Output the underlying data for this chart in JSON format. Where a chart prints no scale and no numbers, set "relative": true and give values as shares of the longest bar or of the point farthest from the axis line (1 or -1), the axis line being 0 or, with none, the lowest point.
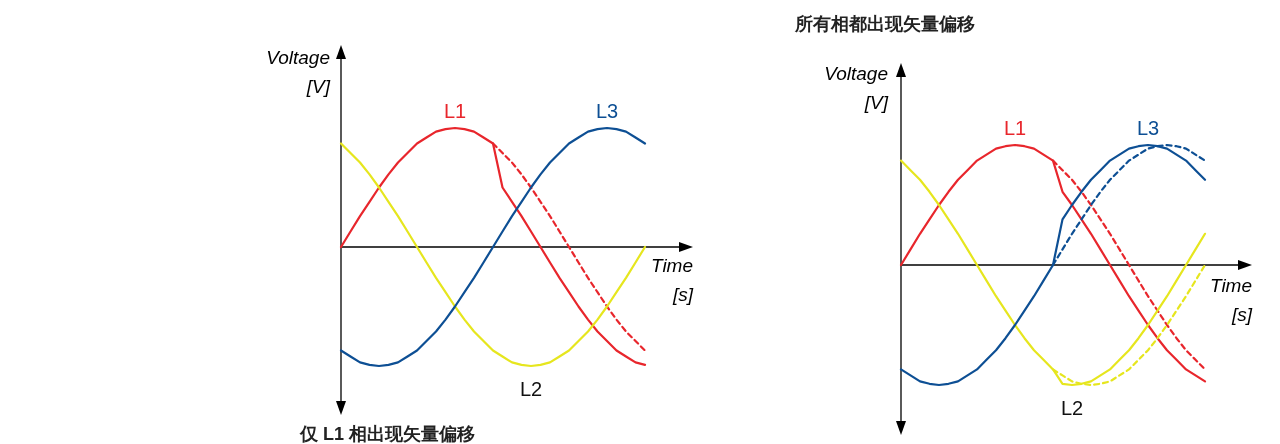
{
  "chart_data": [
    {
      "type": "line",
      "relative": true,
      "title": "仅 L1 相出现矢量偏移",
      "xlabel": "Time [s]",
      "ylabel": "Voltage [V]",
      "categories": [
        null,
        null,
        null,
        null,
        null,
        null,
        null,
        null,
        null,
        null,
        null,
        null,
        null,
        null,
        null,
        null,
        null,
        null,
        null,
        null,
        null,
        null,
        null,
        null,
        null,
        null,
        null,
        null,
        null,
        null,
        null,
        null,
        null
      ],
      "series": [
        {
          "name": "L1",
          "color": "#e8262c",
          "values": [
            0,
            0.13,
            0.26,
            0.38,
            0.5,
            0.61,
            0.71,
            0.79,
            0.87,
            0.92,
            0.97,
            0.99,
            1,
            0.99,
            0.97,
            0.92,
            0.87,
            0.5,
            0.38,
            0.26,
            0.13,
            0,
            -0.13,
            -0.26,
            -0.38,
            -0.5,
            -0.61,
            -0.71,
            -0.79,
            -0.87,
            -0.92,
            -0.97,
            -0.99
          ]
        },
        {
          "color": "#e8262c",
          "line_style": "dashed",
          "values": [
            null,
            null,
            null,
            null,
            null,
            null,
            null,
            null,
            null,
            null,
            null,
            null,
            null,
            null,
            null,
            null,
            0.87,
            0.79,
            0.71,
            0.61,
            0.5,
            0.38,
            0.26,
            0.13,
            0,
            -0.13,
            -0.26,
            -0.38,
            -0.5,
            -0.61,
            -0.71,
            -0.79,
            -0.87
          ]
        },
        {
          "name": "L2",
          "color": "#e6e61e",
          "values": [
            0.87,
            0.79,
            0.71,
            0.61,
            0.5,
            0.38,
            0.26,
            0.13,
            0,
            -0.13,
            -0.26,
            -0.38,
            -0.5,
            -0.61,
            -0.71,
            -0.79,
            -0.87,
            -0.92,
            -0.97,
            -0.99,
            -1,
            -0.99,
            -0.97,
            -0.92,
            -0.87,
            -0.79,
            -0.71,
            -0.61,
            -0.5,
            -0.38,
            -0.26,
            -0.13,
            0
          ]
        },
        {
          "name": "L3",
          "color": "#0d4f94",
          "values": [
            -0.87,
            -0.92,
            -0.97,
            -0.99,
            -1,
            -0.99,
            -0.97,
            -0.92,
            -0.87,
            -0.79,
            -0.71,
            -0.61,
            -0.5,
            -0.38,
            -0.26,
            -0.13,
            0,
            0.13,
            0.26,
            0.38,
            0.5,
            0.61,
            0.71,
            0.79,
            0.87,
            0.92,
            0.97,
            0.99,
            1,
            0.99,
            0.97,
            0.92,
            0.87
          ]
        }
      ]
    },
    {
      "type": "line",
      "relative": true,
      "title": "所有相都出现矢量偏移",
      "xlabel": "Time [s]",
      "ylabel": "Voltage [V]",
      "categories": [
        null,
        null,
        null,
        null,
        null,
        null,
        null,
        null,
        null,
        null,
        null,
        null,
        null,
        null,
        null,
        null,
        null,
        null,
        null,
        null,
        null,
        null,
        null,
        null,
        null,
        null,
        null,
        null,
        null,
        null,
        null,
        null,
        null
      ],
      "series": [
        {
          "name": "L1",
          "color": "#e8262c",
          "values": [
            0,
            0.13,
            0.26,
            0.38,
            0.5,
            0.61,
            0.71,
            0.79,
            0.87,
            0.92,
            0.97,
            0.99,
            1,
            0.99,
            0.97,
            0.92,
            0.87,
            0.61,
            0.5,
            0.38,
            0.26,
            0.13,
            0,
            -0.13,
            -0.26,
            -0.38,
            -0.5,
            -0.61,
            -0.71,
            -0.79,
            -0.87,
            -0.92,
            -0.97
          ]
        },
        {
          "color": "#e8262c",
          "line_style": "dashed",
          "values": [
            null,
            null,
            null,
            null,
            null,
            null,
            null,
            null,
            null,
            null,
            null,
            null,
            null,
            null,
            null,
            null,
            0.87,
            0.79,
            0.71,
            0.61,
            0.5,
            0.38,
            0.26,
            0.13,
            0,
            -0.13,
            -0.26,
            -0.38,
            -0.5,
            -0.61,
            -0.71,
            -0.79,
            -0.87
          ]
        },
        {
          "name": "L2",
          "color": "#e6e61e",
          "values": [
            0.87,
            0.79,
            0.71,
            0.61,
            0.5,
            0.38,
            0.26,
            0.13,
            0,
            -0.13,
            -0.26,
            -0.38,
            -0.5,
            -0.61,
            -0.71,
            -0.79,
            -0.87,
            -0.99,
            -1,
            -0.99,
            -0.97,
            -0.92,
            -0.87,
            -0.79,
            -0.71,
            -0.61,
            -0.5,
            -0.38,
            -0.26,
            -0.13,
            0,
            0.13,
            0.26
          ]
        },
        {
          "color": "#e6e61e",
          "line_style": "dashed",
          "values": [
            null,
            null,
            null,
            null,
            null,
            null,
            null,
            null,
            null,
            null,
            null,
            null,
            null,
            null,
            null,
            null,
            -0.87,
            -0.92,
            -0.97,
            -0.99,
            -1,
            -0.99,
            -0.97,
            -0.92,
            -0.87,
            -0.79,
            -0.71,
            -0.61,
            -0.5,
            -0.38,
            -0.26,
            -0.13,
            0
          ]
        },
        {
          "name": "L3",
          "color": "#0d4f94",
          "values": [
            -0.87,
            -0.92,
            -0.97,
            -0.99,
            -1,
            -0.99,
            -0.97,
            -0.92,
            -0.87,
            -0.79,
            -0.71,
            -0.61,
            -0.5,
            -0.38,
            -0.26,
            -0.13,
            0,
            0.38,
            0.5,
            0.61,
            0.71,
            0.79,
            0.87,
            0.92,
            0.97,
            0.99,
            1,
            0.99,
            0.97,
            0.92,
            0.87,
            0.79,
            0.71
          ]
        },
        {
          "color": "#0d4f94",
          "line_style": "dashed",
          "values": [
            null,
            null,
            null,
            null,
            null,
            null,
            null,
            null,
            null,
            null,
            null,
            null,
            null,
            null,
            null,
            null,
            0,
            0.13,
            0.26,
            0.38,
            0.5,
            0.61,
            0.71,
            0.79,
            0.87,
            0.92,
            0.97,
            0.99,
            1,
            0.99,
            0.97,
            0.92,
            0.87
          ]
        }
      ]
    }
  ]
}
